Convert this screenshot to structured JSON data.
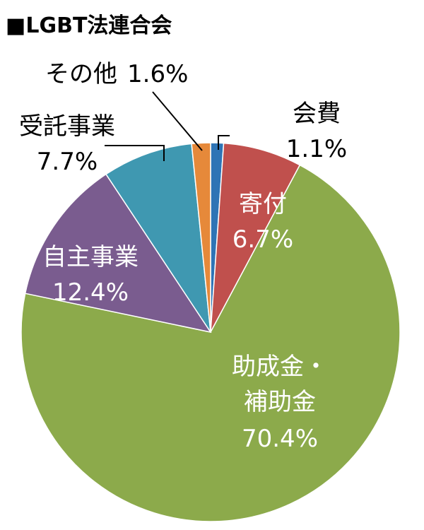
{
  "chart_data": {
    "type": "pie",
    "title": "■LGBT法連合会",
    "slices": [
      {
        "label": "会費",
        "value_label": "1.1%",
        "value": 1.1,
        "color": "#2e74b5",
        "label_color": "#000000"
      },
      {
        "label": "寄付",
        "value_label": "6.7%",
        "value": 6.7,
        "color": "#c0504d",
        "label_color": "#ffffff"
      },
      {
        "label": "助成金・\n補助金",
        "value_label": "70.4%",
        "value": 70.4,
        "color": "#8caa4b",
        "label_color": "#ffffff"
      },
      {
        "label": "自主事業",
        "value_label": "12.4%",
        "value": 12.4,
        "color": "#7a5c8f",
        "label_color": "#ffffff"
      },
      {
        "label": "受託事業",
        "value_label": "7.7%",
        "value": 7.7,
        "color": "#3f98b1",
        "label_color": "#000000"
      },
      {
        "label": "その他",
        "value_label": "1.6%",
        "value": 1.6,
        "color": "#e6893a",
        "label_color": "#000000"
      }
    ]
  }
}
